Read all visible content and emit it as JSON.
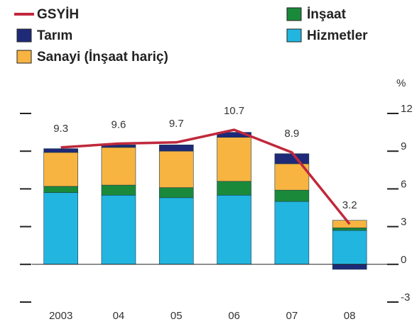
{
  "chart_data": {
    "type": "bar",
    "stacked": true,
    "unit": "%",
    "categories": [
      "2003",
      "04",
      "05",
      "06",
      "07",
      "08"
    ],
    "series": [
      {
        "name": "GSYİH",
        "type": "line",
        "color": "#c0283c",
        "values": [
          9.3,
          9.6,
          9.7,
          10.7,
          8.9,
          3.2
        ]
      },
      {
        "name": "Hizmetler",
        "color": "#22b5e0",
        "values": [
          5.7,
          5.5,
          5.3,
          5.5,
          5.0,
          2.7
        ]
      },
      {
        "name": "İnşaat",
        "color": "#1a8a3a",
        "values": [
          0.5,
          0.8,
          0.8,
          1.1,
          0.9,
          0.2
        ]
      },
      {
        "name": "Sanayi (İnşaat hariç)",
        "color": "#f7b441",
        "values": [
          2.7,
          3.0,
          2.9,
          3.5,
          2.1,
          0.6
        ]
      },
      {
        "name": "Tarım",
        "color": "#1e2a78",
        "values": [
          0.3,
          0.2,
          0.5,
          0.4,
          0.8,
          -0.4
        ]
      }
    ],
    "ylim": [
      -3,
      12
    ],
    "yticks": [
      -3,
      0,
      3,
      6,
      9,
      12
    ]
  }
}
